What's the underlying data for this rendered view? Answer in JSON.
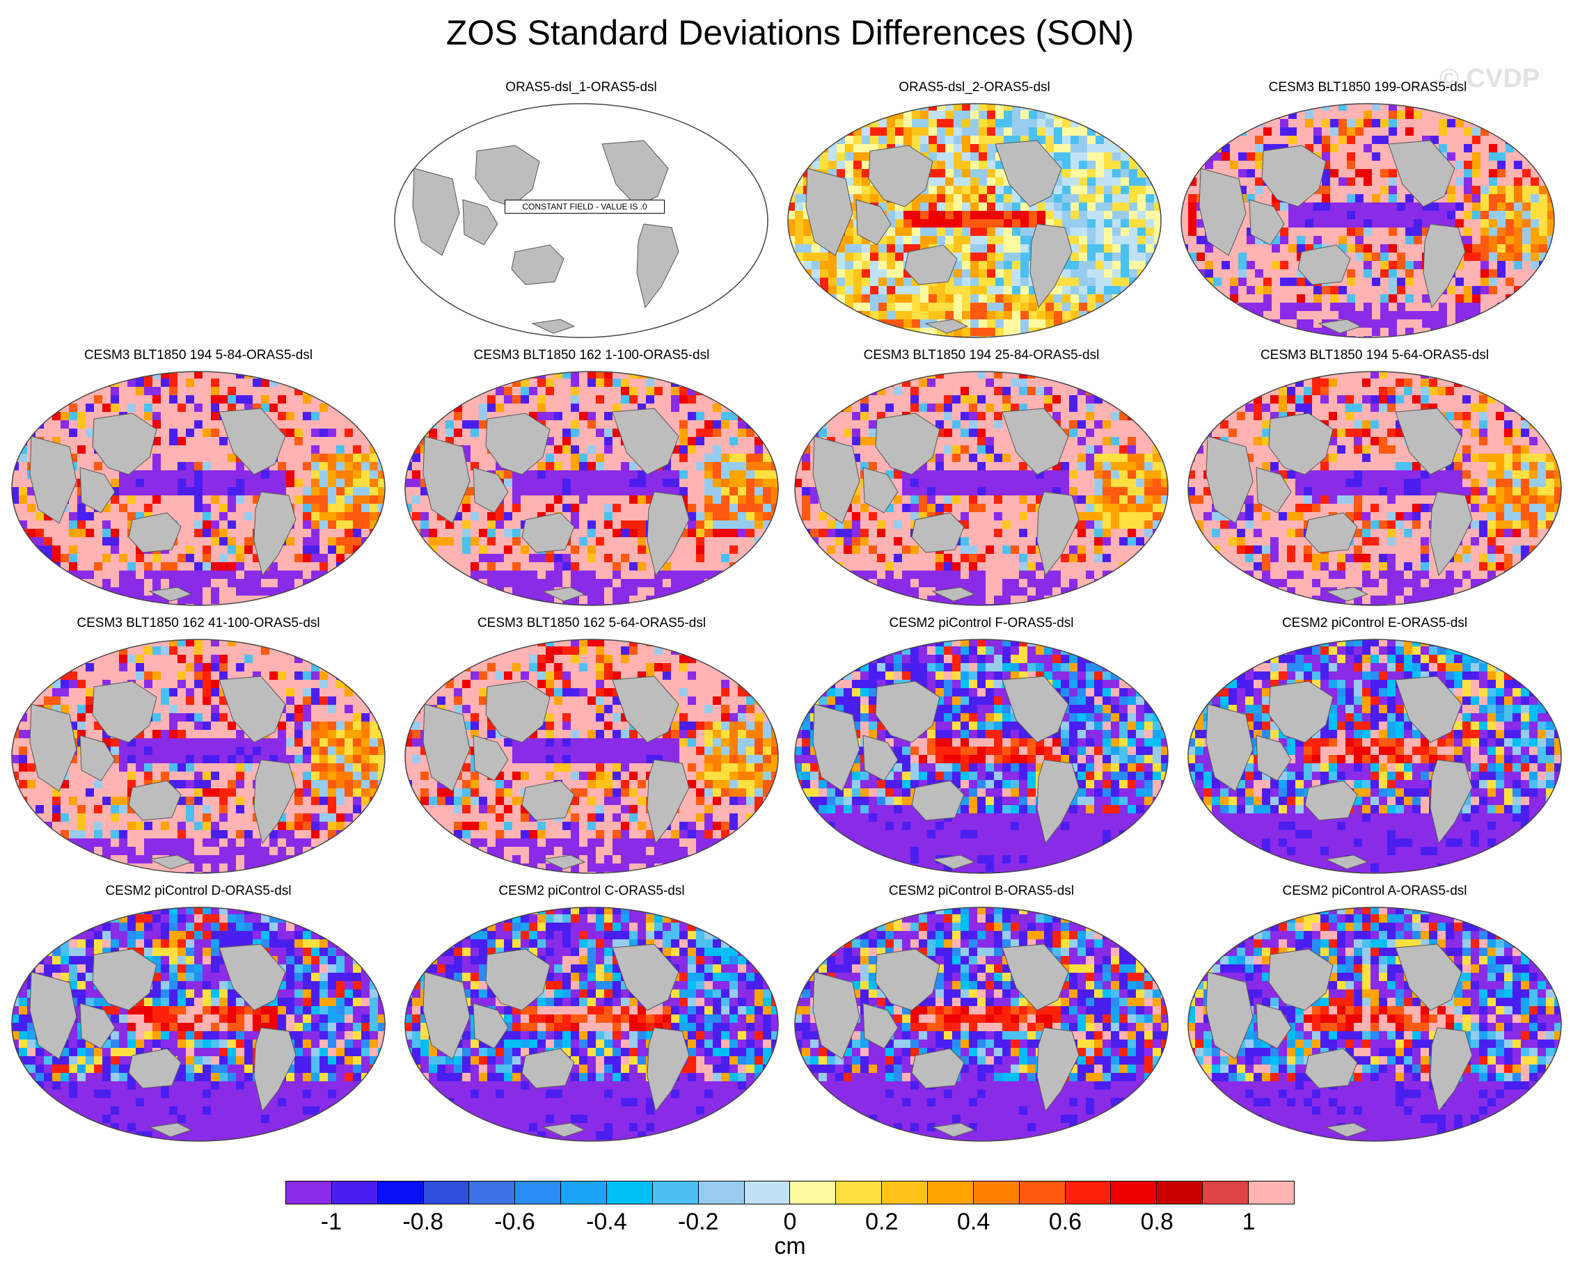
{
  "title": "ZOS Standard Deviations Differences (SON)",
  "watermark": "© CVDP",
  "constant_field_note": "CONSTANT FIELD - VALUE IS .0",
  "panels": [
    {
      "label": "ORAS5-dsl_1-ORAS5-dsl",
      "pattern": "constant"
    },
    {
      "label": "ORAS5-dsl_2-ORAS5-dsl",
      "pattern": "noise"
    },
    {
      "label": "CESM3 BLT1850 199-ORAS5-dsl",
      "pattern": "pink"
    },
    {
      "label": "CESM3 BLT1850 194 5-84-ORAS5-dsl",
      "pattern": "pink"
    },
    {
      "label": "CESM3 BLT1850 162 1-100-ORAS5-dsl",
      "pattern": "pink"
    },
    {
      "label": "CESM3 BLT1850 194 25-84-ORAS5-dsl",
      "pattern": "pink"
    },
    {
      "label": "CESM3 BLT1850 194 5-64-ORAS5-dsl",
      "pattern": "pink"
    },
    {
      "label": "CESM3 BLT1850 162 41-100-ORAS5-dsl",
      "pattern": "pink"
    },
    {
      "label": "CESM3 BLT1850 162 5-64-ORAS5-dsl",
      "pattern": "pink"
    },
    {
      "label": "CESM2 piControl F-ORAS5-dsl",
      "pattern": "blue"
    },
    {
      "label": "CESM2 piControl E-ORAS5-dsl",
      "pattern": "blue"
    },
    {
      "label": "CESM2 piControl D-ORAS5-dsl",
      "pattern": "blue"
    },
    {
      "label": "CESM2 piControl C-ORAS5-dsl",
      "pattern": "blue"
    },
    {
      "label": "CESM2 piControl B-ORAS5-dsl",
      "pattern": "blue"
    },
    {
      "label": "CESM2 piControl A-ORAS5-dsl",
      "pattern": "blue"
    }
  ],
  "colorbar": {
    "colors": [
      "#8a2be8",
      "#4b1ef0",
      "#0a10f5",
      "#2f4fdc",
      "#3c73e6",
      "#2a8cf5",
      "#1aa4f5",
      "#00bff5",
      "#4cc0f0",
      "#98ccef",
      "#bfe3f5",
      "#fffaa0",
      "#ffe040",
      "#ffc41a",
      "#ffa400",
      "#ff8000",
      "#ff5a10",
      "#ff2208",
      "#ee0000",
      "#c80000",
      "#dd4444",
      "#ffb3b3"
    ],
    "tick_labels": [
      "-1",
      "-0.8",
      "-0.6",
      "-0.4",
      "-0.2",
      "0",
      "0.2",
      "0.4",
      "0.6",
      "0.8",
      "1"
    ],
    "tick_values": [
      -1,
      -0.8,
      -0.6,
      -0.4,
      -0.2,
      0,
      0.2,
      0.4,
      0.6,
      0.8,
      1
    ],
    "units": "cm"
  }
}
